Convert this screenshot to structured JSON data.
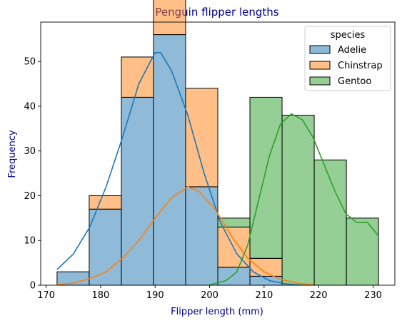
{
  "chart_data": {
    "type": "bar",
    "subtype": "stacked-histogram-with-kde",
    "title": "Penguin flipper lengths",
    "xlabel": "Flipper length (mm)",
    "ylabel": "Frequency",
    "label_color": "#00008b",
    "xlim": [
      169,
      234
    ],
    "ylim": [
      0,
      58.8
    ],
    "xticks": [
      170,
      180,
      190,
      200,
      210,
      220,
      230
    ],
    "yticks": [
      0,
      10,
      20,
      30,
      40,
      50
    ],
    "bin_edges": [
      172.0,
      177.9,
      183.8,
      189.7,
      195.6,
      201.5,
      207.4,
      213.3,
      219.2,
      225.1,
      231.0
    ],
    "legend": {
      "title": "species",
      "position": "top-right"
    },
    "series": [
      {
        "name": "Adelie",
        "color": "#1f77b4",
        "counts": [
          3,
          17,
          42,
          56,
          22,
          4,
          2,
          0,
          0,
          0
        ],
        "kde": [
          [
            172,
            3.5
          ],
          [
            175,
            7
          ],
          [
            178,
            13
          ],
          [
            181,
            22
          ],
          [
            184,
            33
          ],
          [
            187,
            45
          ],
          [
            190,
            52
          ],
          [
            191,
            52
          ],
          [
            193,
            48
          ],
          [
            196,
            38
          ],
          [
            199,
            25
          ],
          [
            202,
            14
          ],
          [
            205,
            7
          ],
          [
            208,
            3
          ],
          [
            211,
            1
          ],
          [
            214,
            0.3
          ],
          [
            217,
            0
          ]
        ]
      },
      {
        "name": "Chinstrap",
        "color": "#ff7f0e",
        "counts": [
          0,
          3,
          9,
          21,
          22,
          9,
          4,
          0,
          0,
          0
        ],
        "kde": [
          [
            172,
            0.1
          ],
          [
            175,
            0.5
          ],
          [
            178,
            1.5
          ],
          [
            181,
            3
          ],
          [
            184,
            6
          ],
          [
            187,
            10
          ],
          [
            190,
            15
          ],
          [
            193,
            19.5
          ],
          [
            196,
            22
          ],
          [
            198,
            21
          ],
          [
            201,
            17
          ],
          [
            204,
            11
          ],
          [
            207,
            6
          ],
          [
            210,
            3
          ],
          [
            213,
            1.3
          ],
          [
            216,
            0.5
          ],
          [
            219,
            0.1
          ]
        ]
      },
      {
        "name": "Gentoo",
        "color": "#2ca02c",
        "counts": [
          0,
          0,
          0,
          0,
          0,
          2,
          36,
          38,
          28,
          15
        ],
        "kde": [
          [
            200,
            0.1
          ],
          [
            203,
            1
          ],
          [
            205,
            3
          ],
          [
            207,
            9
          ],
          [
            209,
            19
          ],
          [
            211,
            29
          ],
          [
            213,
            36
          ],
          [
            215,
            38.3
          ],
          [
            217,
            37
          ],
          [
            219,
            33
          ],
          [
            221,
            27
          ],
          [
            223,
            21
          ],
          [
            225,
            16
          ],
          [
            227,
            14
          ],
          [
            229,
            14
          ],
          [
            231,
            11
          ]
        ]
      }
    ]
  }
}
